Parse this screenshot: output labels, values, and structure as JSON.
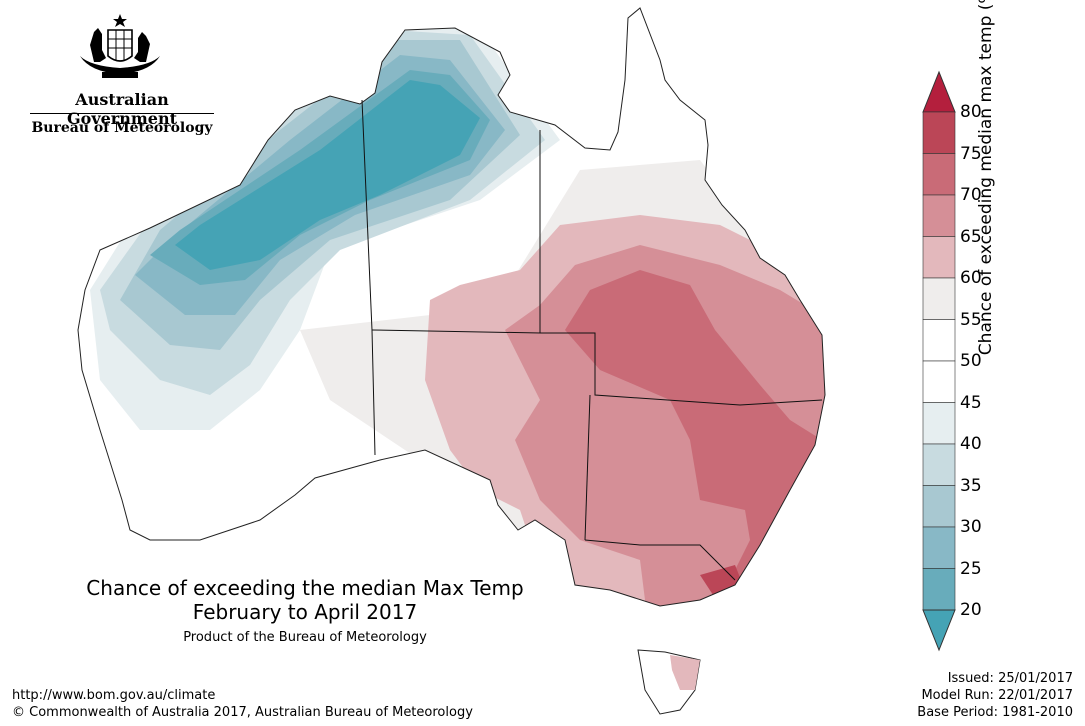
{
  "header": {
    "gov_name": "Australian Government",
    "dept_name": "Bureau of Meteorology"
  },
  "map": {
    "title_line1": "Chance of exceeding the median Max Temp",
    "title_line2": "February to April 2017",
    "product": "Product of the Bureau of Meteorology",
    "region": "Australia"
  },
  "legend": {
    "title": "Chance of exceeding median max temp (%)",
    "ticks": [
      "80",
      "75",
      "70",
      "65",
      "60",
      "55",
      "50",
      "45",
      "40",
      "35",
      "30",
      "25",
      "20"
    ],
    "colors": {
      "75-80": "#bb4657",
      "70-75": "#c96b77",
      "65-70": "#d58f97",
      "60-65": "#e3b8bc",
      "55-60": "#efedec",
      "50-55": "#ffffff",
      "45-50": "#ffffff",
      "40-45": "#e6eef0",
      "35-40": "#c8dbe0",
      "30-35": "#a8c8d1",
      "25-30": "#88b8c6",
      "20-25": "#68acbb",
      "above-80": "#b41f3d",
      "below-20": "#45a3b5"
    }
  },
  "footer": {
    "url": "http://www.bom.gov.au/climate",
    "copyright": "© Commonwealth of Australia 2017, Australian Bureau of Meteorology",
    "issued": "Issued: 25/01/2017",
    "model_run": "Model Run: 22/01/2017",
    "base_period": "Base Period: 1981-2010"
  }
}
